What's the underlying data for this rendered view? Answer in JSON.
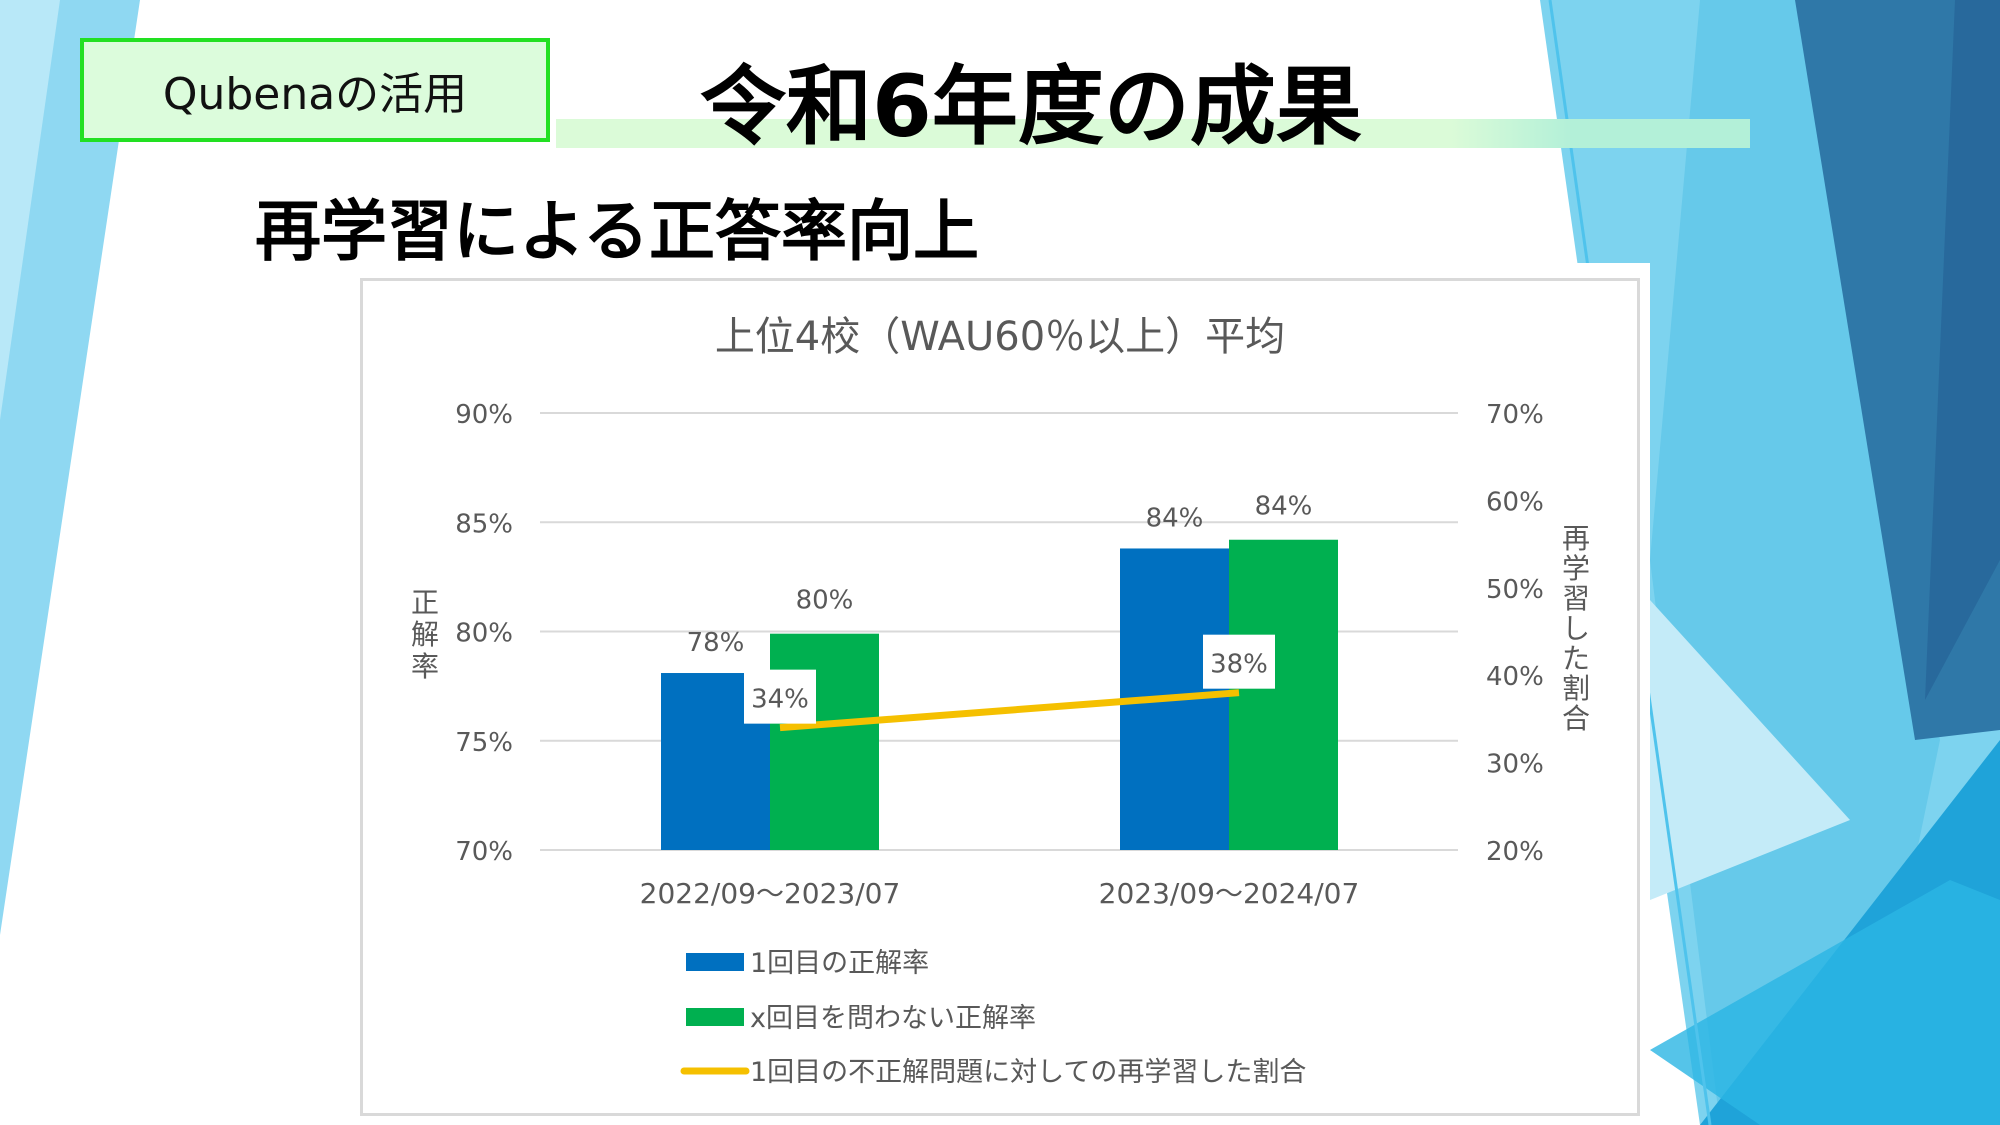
{
  "header": {
    "section_tag": "Qubenaの活用",
    "title": "令和6年度の成果",
    "subtitle": "再学習による正答率向上"
  },
  "colors": {
    "tag_border": "#22e022",
    "tag_fill": "#dcfcdc",
    "bar_first": "#0070c0",
    "bar_any": "#00b050",
    "line_relearn": "#f5c000"
  },
  "chart_data": {
    "type": "bar+line",
    "title": "上位4校（WAU60％以上）平均",
    "categories": [
      "2022/09～2023/07",
      "2023/09～2024/07"
    ],
    "ylabel": "正解率",
    "y2label": "再学習した割合",
    "ylim": [
      70,
      90
    ],
    "y2lim": [
      20,
      70
    ],
    "yticks": [
      "70%",
      "75%",
      "80%",
      "85%",
      "90%"
    ],
    "y2ticks": [
      "20%",
      "30%",
      "40%",
      "50%",
      "60%",
      "70%"
    ],
    "grid": true,
    "legend_position": "bottom",
    "series": [
      {
        "name": "1回目の正解率",
        "type": "bar",
        "axis": "left",
        "values": [
          78.1,
          83.8
        ],
        "labels": [
          "78%",
          "84%"
        ]
      },
      {
        "name": "x回目を問わない正解率",
        "type": "bar",
        "axis": "left",
        "values": [
          79.9,
          84.2
        ],
        "labels": [
          "80%",
          "84%"
        ]
      },
      {
        "name": "1回目の不正解問題に対しての再学習した割合",
        "type": "line",
        "axis": "right",
        "values": [
          34,
          38
        ],
        "labels": [
          "34%",
          "38%"
        ]
      }
    ]
  }
}
